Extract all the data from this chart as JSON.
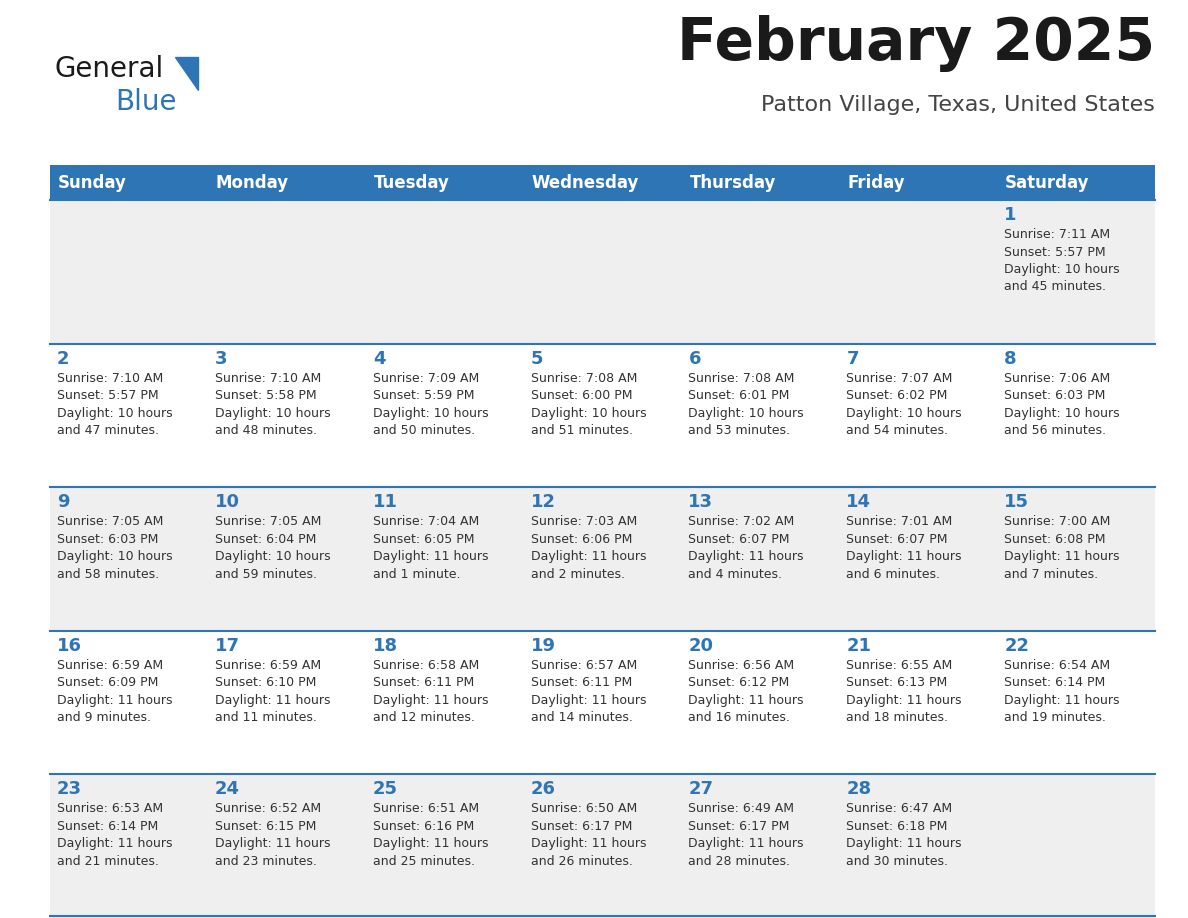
{
  "title": "February 2025",
  "subtitle": "Patton Village, Texas, United States",
  "days_of_week": [
    "Sunday",
    "Monday",
    "Tuesday",
    "Wednesday",
    "Thursday",
    "Friday",
    "Saturday"
  ],
  "header_bg": "#2E75B6",
  "header_text": "#FFFFFF",
  "cell_bg_odd": "#EFEFEF",
  "cell_bg_even": "#FFFFFF",
  "border_color": "#2E75B6",
  "day_number_color": "#2E75B6",
  "text_color": "#333333",
  "title_color": "#1a1a1a",
  "subtitle_color": "#444444",
  "logo_general_color": "#1a1a1a",
  "logo_blue_color": "#2E75B6",
  "logo_triangle_color": "#2E75B6",
  "calendar_data": [
    [
      {
        "day": null,
        "sunrise": null,
        "sunset": null,
        "daylight": null
      },
      {
        "day": null,
        "sunrise": null,
        "sunset": null,
        "daylight": null
      },
      {
        "day": null,
        "sunrise": null,
        "sunset": null,
        "daylight": null
      },
      {
        "day": null,
        "sunrise": null,
        "sunset": null,
        "daylight": null
      },
      {
        "day": null,
        "sunrise": null,
        "sunset": null,
        "daylight": null
      },
      {
        "day": null,
        "sunrise": null,
        "sunset": null,
        "daylight": null
      },
      {
        "day": 1,
        "sunrise": "7:11 AM",
        "sunset": "5:57 PM",
        "daylight": "10 hours\nand 45 minutes."
      }
    ],
    [
      {
        "day": 2,
        "sunrise": "7:10 AM",
        "sunset": "5:57 PM",
        "daylight": "10 hours\nand 47 minutes."
      },
      {
        "day": 3,
        "sunrise": "7:10 AM",
        "sunset": "5:58 PM",
        "daylight": "10 hours\nand 48 minutes."
      },
      {
        "day": 4,
        "sunrise": "7:09 AM",
        "sunset": "5:59 PM",
        "daylight": "10 hours\nand 50 minutes."
      },
      {
        "day": 5,
        "sunrise": "7:08 AM",
        "sunset": "6:00 PM",
        "daylight": "10 hours\nand 51 minutes."
      },
      {
        "day": 6,
        "sunrise": "7:08 AM",
        "sunset": "6:01 PM",
        "daylight": "10 hours\nand 53 minutes."
      },
      {
        "day": 7,
        "sunrise": "7:07 AM",
        "sunset": "6:02 PM",
        "daylight": "10 hours\nand 54 minutes."
      },
      {
        "day": 8,
        "sunrise": "7:06 AM",
        "sunset": "6:03 PM",
        "daylight": "10 hours\nand 56 minutes."
      }
    ],
    [
      {
        "day": 9,
        "sunrise": "7:05 AM",
        "sunset": "6:03 PM",
        "daylight": "10 hours\nand 58 minutes."
      },
      {
        "day": 10,
        "sunrise": "7:05 AM",
        "sunset": "6:04 PM",
        "daylight": "10 hours\nand 59 minutes."
      },
      {
        "day": 11,
        "sunrise": "7:04 AM",
        "sunset": "6:05 PM",
        "daylight": "11 hours\nand 1 minute."
      },
      {
        "day": 12,
        "sunrise": "7:03 AM",
        "sunset": "6:06 PM",
        "daylight": "11 hours\nand 2 minutes."
      },
      {
        "day": 13,
        "sunrise": "7:02 AM",
        "sunset": "6:07 PM",
        "daylight": "11 hours\nand 4 minutes."
      },
      {
        "day": 14,
        "sunrise": "7:01 AM",
        "sunset": "6:07 PM",
        "daylight": "11 hours\nand 6 minutes."
      },
      {
        "day": 15,
        "sunrise": "7:00 AM",
        "sunset": "6:08 PM",
        "daylight": "11 hours\nand 7 minutes."
      }
    ],
    [
      {
        "day": 16,
        "sunrise": "6:59 AM",
        "sunset": "6:09 PM",
        "daylight": "11 hours\nand 9 minutes."
      },
      {
        "day": 17,
        "sunrise": "6:59 AM",
        "sunset": "6:10 PM",
        "daylight": "11 hours\nand 11 minutes."
      },
      {
        "day": 18,
        "sunrise": "6:58 AM",
        "sunset": "6:11 PM",
        "daylight": "11 hours\nand 12 minutes."
      },
      {
        "day": 19,
        "sunrise": "6:57 AM",
        "sunset": "6:11 PM",
        "daylight": "11 hours\nand 14 minutes."
      },
      {
        "day": 20,
        "sunrise": "6:56 AM",
        "sunset": "6:12 PM",
        "daylight": "11 hours\nand 16 minutes."
      },
      {
        "day": 21,
        "sunrise": "6:55 AM",
        "sunset": "6:13 PM",
        "daylight": "11 hours\nand 18 minutes."
      },
      {
        "day": 22,
        "sunrise": "6:54 AM",
        "sunset": "6:14 PM",
        "daylight": "11 hours\nand 19 minutes."
      }
    ],
    [
      {
        "day": 23,
        "sunrise": "6:53 AM",
        "sunset": "6:14 PM",
        "daylight": "11 hours\nand 21 minutes."
      },
      {
        "day": 24,
        "sunrise": "6:52 AM",
        "sunset": "6:15 PM",
        "daylight": "11 hours\nand 23 minutes."
      },
      {
        "day": 25,
        "sunrise": "6:51 AM",
        "sunset": "6:16 PM",
        "daylight": "11 hours\nand 25 minutes."
      },
      {
        "day": 26,
        "sunrise": "6:50 AM",
        "sunset": "6:17 PM",
        "daylight": "11 hours\nand 26 minutes."
      },
      {
        "day": 27,
        "sunrise": "6:49 AM",
        "sunset": "6:17 PM",
        "daylight": "11 hours\nand 28 minutes."
      },
      {
        "day": 28,
        "sunrise": "6:47 AM",
        "sunset": "6:18 PM",
        "daylight": "11 hours\nand 30 minutes."
      },
      {
        "day": null,
        "sunrise": null,
        "sunset": null,
        "daylight": null
      }
    ]
  ]
}
